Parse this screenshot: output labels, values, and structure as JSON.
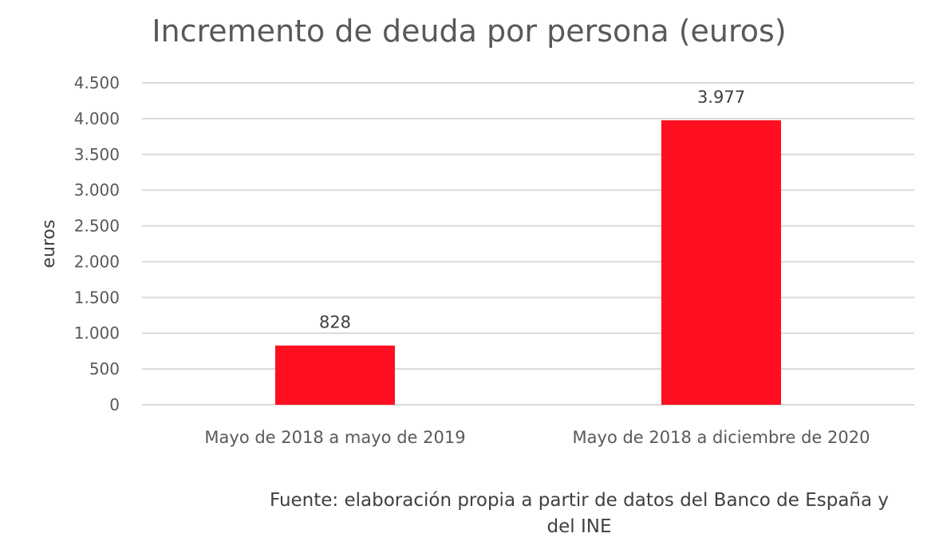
{
  "chart_data": {
    "type": "bar",
    "title": "Incremento de deuda por persona (euros)",
    "ylabel": "euros",
    "xlabel": "",
    "categories": [
      "Mayo de 2018 a mayo de 2019",
      "Mayo de 2018 a diciembre de 2020"
    ],
    "values": [
      828,
      3977
    ],
    "value_labels": [
      "828",
      "3.977"
    ],
    "ylim": [
      0,
      4500
    ],
    "yticks": [
      0,
      500,
      1000,
      1500,
      2000,
      2500,
      3000,
      3500,
      4000,
      4500
    ],
    "ytick_labels": [
      "0",
      "500",
      "1.000",
      "1.500",
      "2.000",
      "2.500",
      "3.000",
      "3.500",
      "4.000",
      "4.500"
    ],
    "grid": true,
    "legend": "none",
    "bar_color": "#ff0f1f",
    "grid_color": "#d9d9d9"
  },
  "source": {
    "line1": "Fuente: elaboración propia a partir de datos del Banco de España y",
    "line2": "del INE"
  }
}
